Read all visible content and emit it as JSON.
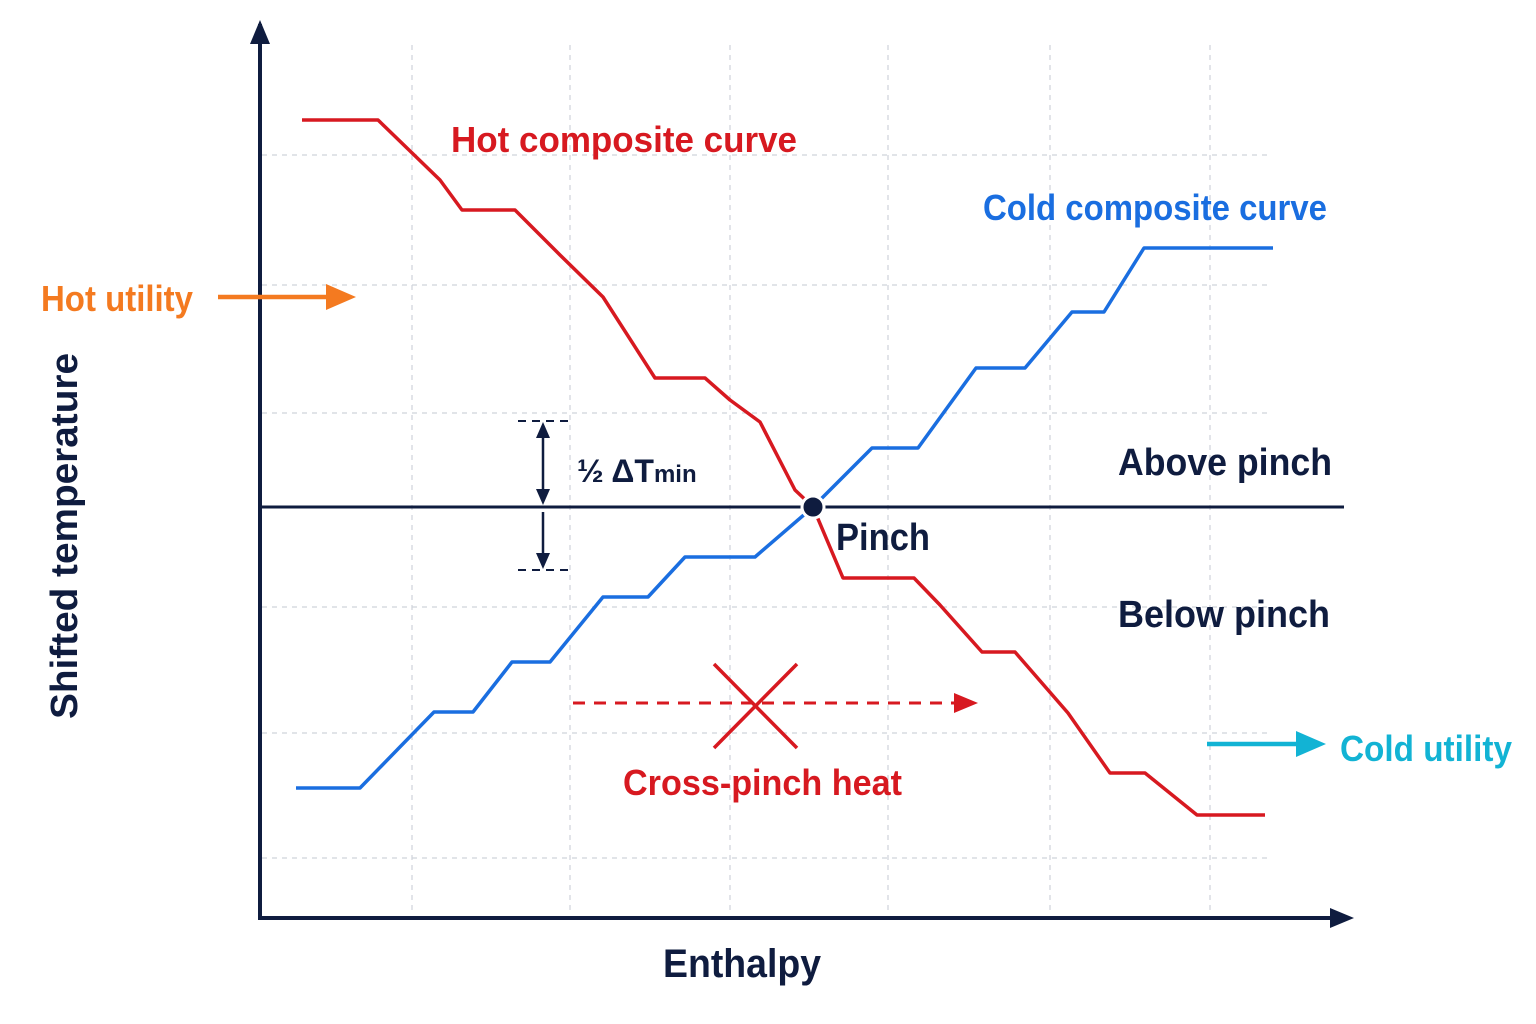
{
  "labels": {
    "hot_curve": "Hot composite curve",
    "cold_curve": "Cold composite curve",
    "hot_utility": "Hot utility",
    "cold_utility": "Cold utility",
    "dtmin_prefix": "½ ΔT",
    "dtmin_sub": "min",
    "above_pinch": "Above pinch",
    "below_pinch": "Below pinch",
    "pinch": "Pinch",
    "cross_pinch": "Cross-pinch heat",
    "y_axis": "Shifted temperature",
    "x_axis": "Enthalpy"
  },
  "colors": {
    "hot": "#d71920",
    "cold": "#1a6ee0",
    "hot_utility": "#f47a20",
    "cold_utility": "#12b3d4",
    "axis": "#0f1c3f"
  }
}
